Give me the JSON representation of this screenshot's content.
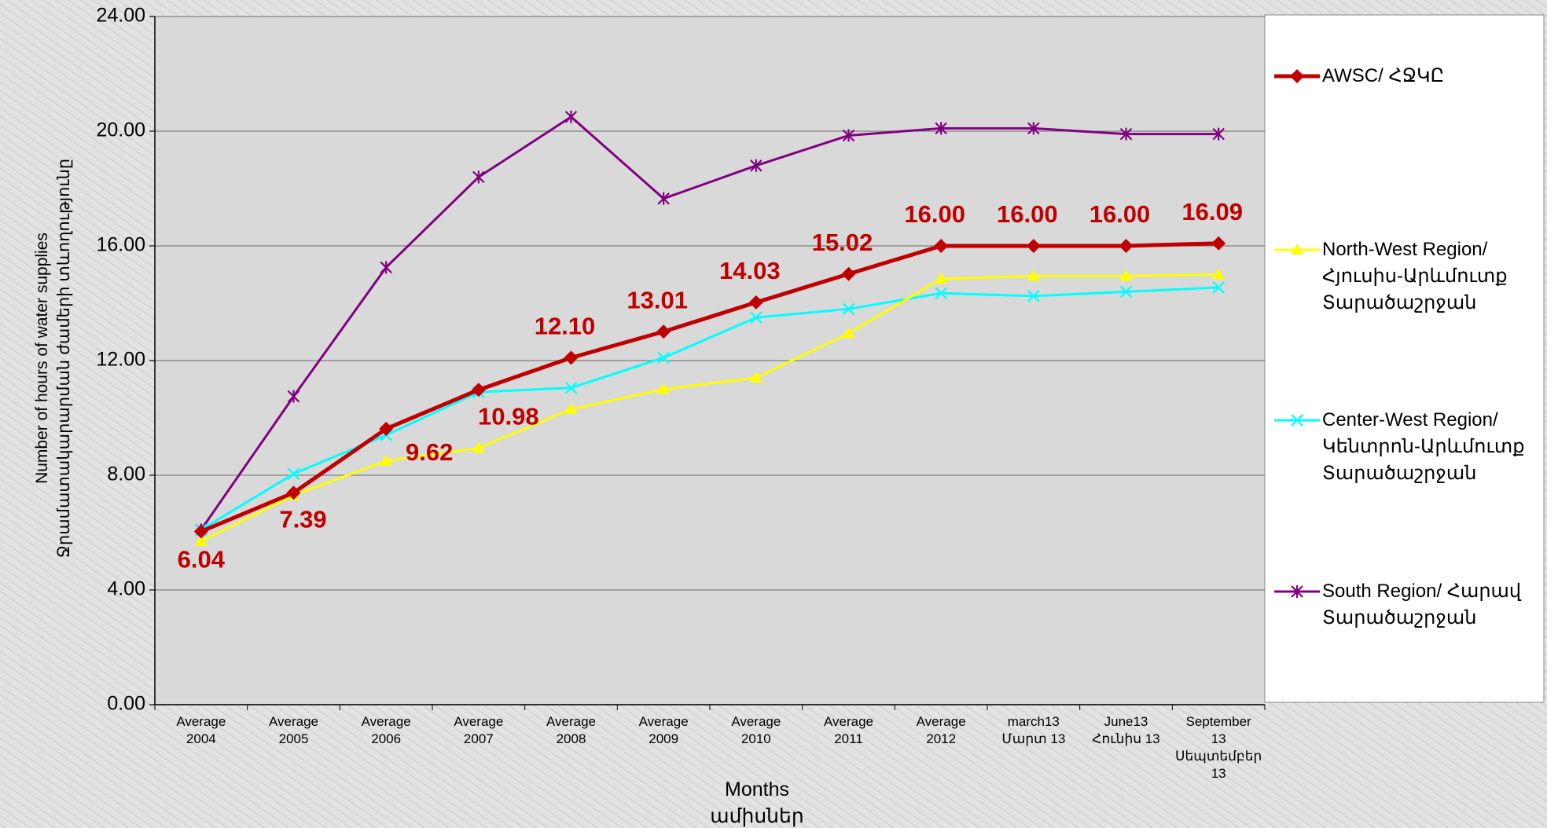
{
  "chart_data": {
    "type": "line",
    "x_label": "Months\nամիսներ",
    "y_label": "Number of hours of water supplies\nՋրամատակարարման ժամերի տևողությունը",
    "categories": [
      "Average\n2004",
      "Average\n2005",
      "Average\n2006",
      "Average\n2007",
      "Average\n2008",
      "Average\n2009",
      "Average\n2010",
      "Average\n2011",
      "Average\n2012",
      "march13\nՄարտ 13",
      "June13\nՀունիս 13",
      "September\n13\nՍեպտեմբեր\n13"
    ],
    "series": [
      {
        "name": "AWSC/ ՀՋԿԸ",
        "color": "#c00000",
        "marker": "diamond",
        "values": [
          6.04,
          7.39,
          9.62,
          10.98,
          12.1,
          13.01,
          14.03,
          15.02,
          16.0,
          16.0,
          16.0,
          16.09
        ],
        "value_labels": [
          "6.04",
          "7.39",
          "9.62",
          "10.98",
          "12.10",
          "13.01",
          "14.03",
          "15.02",
          "16.00",
          "16.00",
          "16.00",
          "16.09"
        ]
      },
      {
        "name": "North-West Region/ Հյուսիս-Արևմուտք Տարածաշրջան",
        "color": "#ffff00",
        "marker": "triangle",
        "values": [
          5.7,
          7.3,
          8.5,
          8.95,
          10.3,
          11.0,
          11.4,
          12.95,
          14.85,
          14.95,
          14.95,
          15.0
        ]
      },
      {
        "name": "Center-West Region/ Կենտրոն-Արևմուտք Տարածաշրջան",
        "color": "#00ffff",
        "marker": "x",
        "values": [
          6.1,
          8.05,
          9.4,
          10.9,
          11.05,
          12.1,
          13.5,
          13.8,
          14.35,
          14.25,
          14.4,
          14.55
        ]
      },
      {
        "name": "South Region/ Հարավ Տարածաշրջան",
        "color": "#800080",
        "marker": "star",
        "values": [
          6.1,
          10.75,
          15.25,
          18.4,
          20.5,
          17.65,
          18.8,
          19.85,
          20.1,
          20.1,
          19.9,
          19.9
        ]
      }
    ],
    "ylim": [
      0,
      24
    ],
    "yticks": [
      {
        "value": 0,
        "label": "0.00"
      },
      {
        "value": 4,
        "label": "4.00"
      },
      {
        "value": 8,
        "label": "8.00"
      },
      {
        "value": 12,
        "label": "12.00"
      },
      {
        "value": 16,
        "label": "16.00"
      },
      {
        "value": 20,
        "label": "20.00"
      },
      {
        "value": 24,
        "label": "24.00"
      }
    ],
    "grid": true,
    "legend": "right"
  }
}
